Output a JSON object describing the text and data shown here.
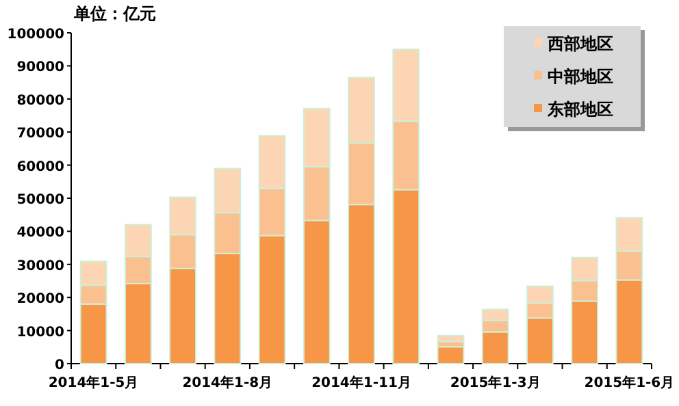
{
  "chart_data": {
    "type": "bar",
    "stacked": true,
    "title": "单位：亿元",
    "categories": [
      "2014年1-5月",
      null,
      null,
      "2014年1-8月",
      null,
      null,
      "2014年1-11月",
      null,
      null,
      "2015年1-3月",
      null,
      null,
      "2015年1-6月"
    ],
    "series": [
      {
        "name": "东部地区",
        "color": "#f79646",
        "values": [
          18000,
          24200,
          28800,
          33300,
          38700,
          43300,
          48100,
          52600,
          5100,
          9600,
          13800,
          18900,
          25300
        ]
      },
      {
        "name": "中部地区",
        "color": "#fac090",
        "values": [
          5700,
          8200,
          10200,
          12300,
          14300,
          16200,
          18600,
          20700,
          1600,
          3500,
          4500,
          6200,
          8700
        ]
      },
      {
        "name": "西部地区",
        "color": "#fcd5b5",
        "values": [
          7200,
          9600,
          11300,
          13400,
          15900,
          17600,
          19800,
          21700,
          1800,
          3300,
          5100,
          7000,
          10100
        ]
      }
    ],
    "ylim": [
      0,
      100000
    ],
    "yticks": [
      0,
      10000,
      20000,
      30000,
      40000,
      50000,
      60000,
      70000,
      80000,
      90000,
      100000
    ],
    "legend": "top right"
  }
}
